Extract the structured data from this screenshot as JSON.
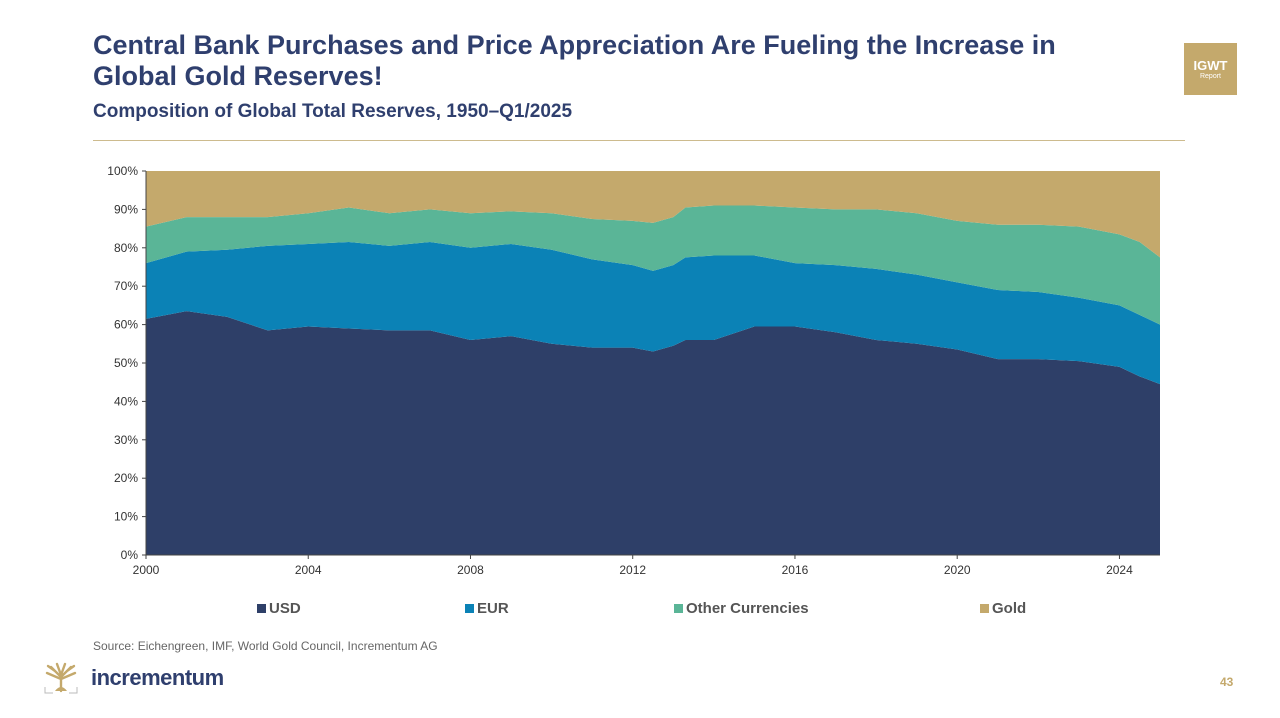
{
  "slide": {
    "title": "Central Bank Purchases and Price Appreciation Are Fueling the Increase in Global Gold Reserves!",
    "subtitle": "Composition of Global Total Reserves, 1950–Q1/2025",
    "badge_main": "IGWT",
    "badge_sub": "Report",
    "source": "Source: Eichengreen, IMF, World Gold Council, Incrementum AG",
    "brand": "incrementum",
    "page_number": "43"
  },
  "chart_data": {
    "type": "area",
    "stacked": true,
    "title": "",
    "xlabel": "",
    "ylabel": "",
    "xlim": [
      2000,
      2025
    ],
    "ylim": [
      0,
      100
    ],
    "x_ticks": [
      "2000",
      "2004",
      "2008",
      "2012",
      "2016",
      "2020",
      "2024"
    ],
    "y_ticks": [
      "0%",
      "10%",
      "20%",
      "30%",
      "40%",
      "50%",
      "60%",
      "70%",
      "80%",
      "90%",
      "100%"
    ],
    "grid": false,
    "legend_position": "bottom",
    "x": [
      2000,
      2001,
      2002,
      2003,
      2004,
      2005,
      2006,
      2007,
      2008,
      2009,
      2010,
      2011,
      2012,
      2012.5,
      2013,
      2013.3,
      2014,
      2015,
      2016,
      2017,
      2018,
      2019,
      2020,
      2021,
      2022,
      2023,
      2024,
      2024.5,
      2025
    ],
    "series": [
      {
        "name": "USD",
        "color": "#2e3f68",
        "values": [
          61.5,
          63.5,
          62,
          58.5,
          59.5,
          59,
          58.5,
          58.5,
          56,
          57,
          55,
          54,
          54,
          53,
          54.5,
          56,
          56,
          59.5,
          59.5,
          58,
          56,
          55,
          53.5,
          51,
          51,
          50.5,
          49,
          46.5,
          44.5
        ]
      },
      {
        "name": "EUR",
        "color": "#0b82b6",
        "values": [
          14.5,
          15.5,
          17.5,
          22,
          21.5,
          22.5,
          22,
          23,
          24,
          24,
          24.5,
          23,
          21.5,
          21,
          21,
          21.5,
          22,
          18.5,
          16.5,
          17.5,
          18.5,
          18,
          17.5,
          18,
          17.5,
          16.5,
          16,
          16,
          15.5
        ]
      },
      {
        "name": "Other Currencies",
        "color": "#5ab597",
        "values": [
          9.5,
          9,
          8.5,
          7.5,
          8,
          9,
          8.5,
          8.5,
          9,
          8.5,
          9.5,
          10.5,
          11.5,
          12.5,
          12.5,
          13,
          13,
          13,
          14.5,
          14.5,
          15.5,
          16,
          16,
          17,
          17.5,
          18.5,
          18.5,
          19,
          17.5
        ]
      },
      {
        "name": "Gold",
        "color": "#c4a96c",
        "values": [
          14.5,
          12,
          12,
          12,
          11,
          9.5,
          11,
          10,
          11,
          10.5,
          11,
          12.5,
          13,
          13.5,
          12,
          9.5,
          9,
          9,
          9.5,
          10,
          10,
          11,
          13,
          14,
          14,
          14.5,
          16.5,
          18.5,
          22.5
        ]
      }
    ]
  }
}
